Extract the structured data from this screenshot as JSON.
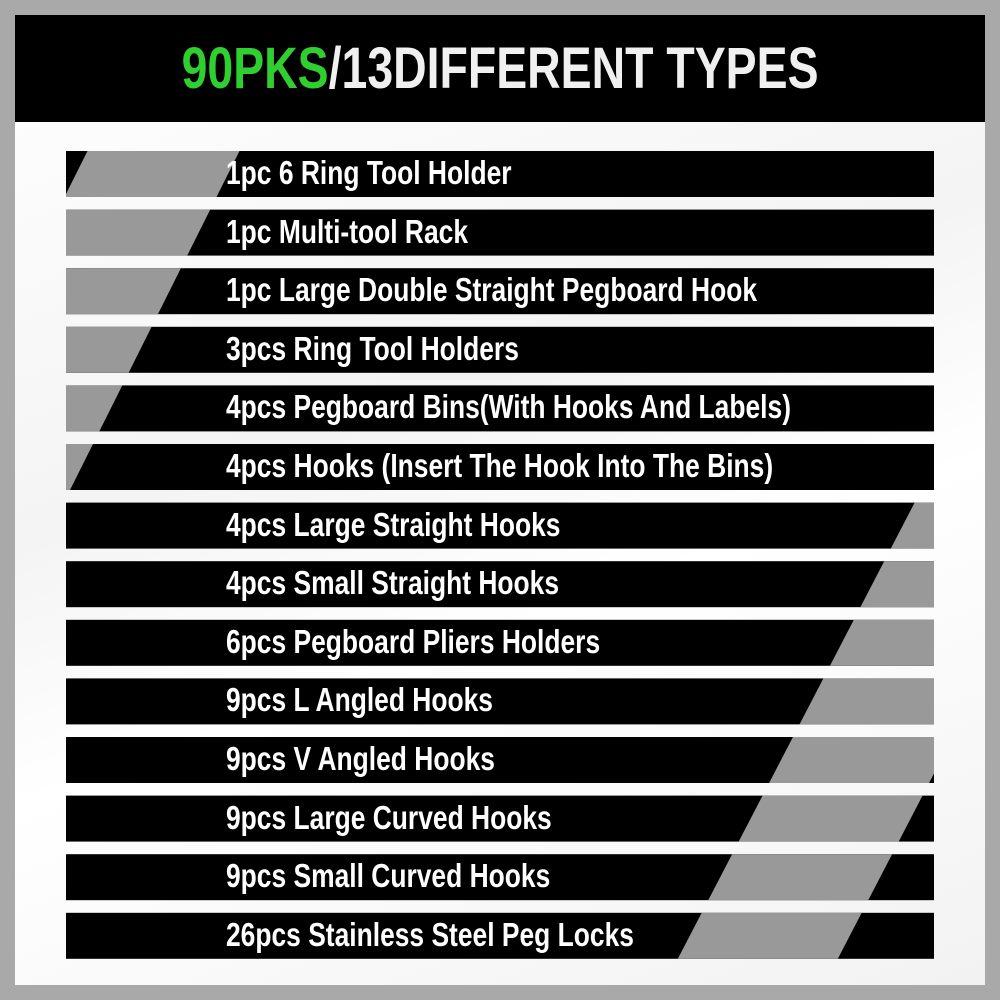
{
  "header": {
    "title_accent": "90PKS",
    "title_rest": "/13DIFFERENT TYPES"
  },
  "colors": {
    "accent": "#2fcf2f",
    "bar": "#000000",
    "stripe": "#999999",
    "border": "#a9a9a9"
  },
  "items": [
    "1pc 6 Ring Tool Holder",
    "1pc Multi-tool Rack",
    "1pc Large Double Straight Pegboard Hook",
    "3pcs Ring Tool Holders",
    "4pcs Pegboard Bins(With Hooks And Labels)",
    "4pcs Hooks (Insert The Hook Into The Bins)",
    "4pcs Large Straight Hooks",
    "4pcs Small Straight Hooks",
    "6pcs Pegboard Pliers Holders",
    "9pcs L Angled Hooks",
    "9pcs V Angled Hooks",
    "9pcs Large Curved Hooks",
    "9pcs Small Curved Hooks",
    "26pcs Stainless Steel Peg Locks"
  ]
}
